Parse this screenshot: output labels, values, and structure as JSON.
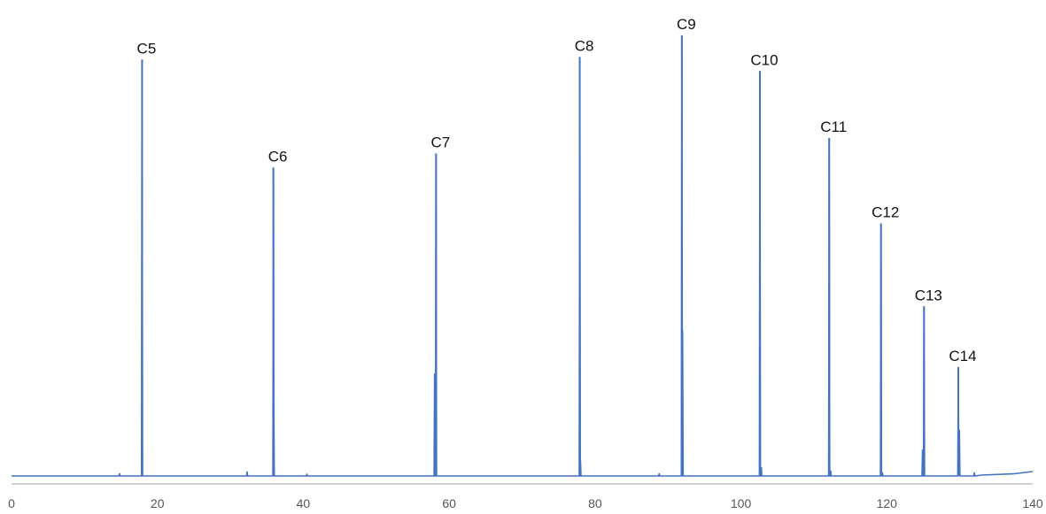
{
  "chart_data": {
    "type": "line",
    "xlim": [
      0,
      140
    ],
    "x_ticks": [
      "0",
      "20",
      "40",
      "60",
      "80",
      "100",
      "120",
      "140"
    ],
    "grid": false,
    "legend": "none",
    "series_color": "#4472c4",
    "axis_color": "#bfbfbf",
    "ylim": [
      0,
      100
    ],
    "peaks": [
      {
        "label": "C5",
        "x": 17.9,
        "y": 94.5
      },
      {
        "label": "C6",
        "x": 35.9,
        "y": 70.0
      },
      {
        "label": "C7",
        "x": 58.2,
        "y": 73.2
      },
      {
        "label": "C8",
        "x": 77.9,
        "y": 95.1
      },
      {
        "label": "C9",
        "x": 91.9,
        "y": 100.0
      },
      {
        "label": "C10",
        "x": 102.6,
        "y": 91.9
      },
      {
        "label": "C11",
        "x": 112.1,
        "y": 76.7
      },
      {
        "label": "C12",
        "x": 119.2,
        "y": 57.3
      },
      {
        "label": "C13",
        "x": 125.1,
        "y": 38.5
      },
      {
        "label": "C14",
        "x": 129.8,
        "y": 24.7
      }
    ],
    "minor_peaks": [
      {
        "x": 14.8,
        "y": 0.6
      },
      {
        "x": 32.3,
        "y": 1.0
      },
      {
        "x": 35.95,
        "y": 19.2
      },
      {
        "x": 40.5,
        "y": 0.5
      },
      {
        "x": 58.0,
        "y": 23.3
      },
      {
        "x": 78.0,
        "y": 3.5
      },
      {
        "x": 88.8,
        "y": 0.6
      },
      {
        "x": 92.0,
        "y": 33.0
      },
      {
        "x": 102.8,
        "y": 2.0
      },
      {
        "x": 112.3,
        "y": 1.2
      },
      {
        "x": 119.4,
        "y": 0.8
      },
      {
        "x": 124.9,
        "y": 6.0
      },
      {
        "x": 129.95,
        "y": 10.5
      },
      {
        "x": 132.0,
        "y": 0.8
      }
    ]
  }
}
